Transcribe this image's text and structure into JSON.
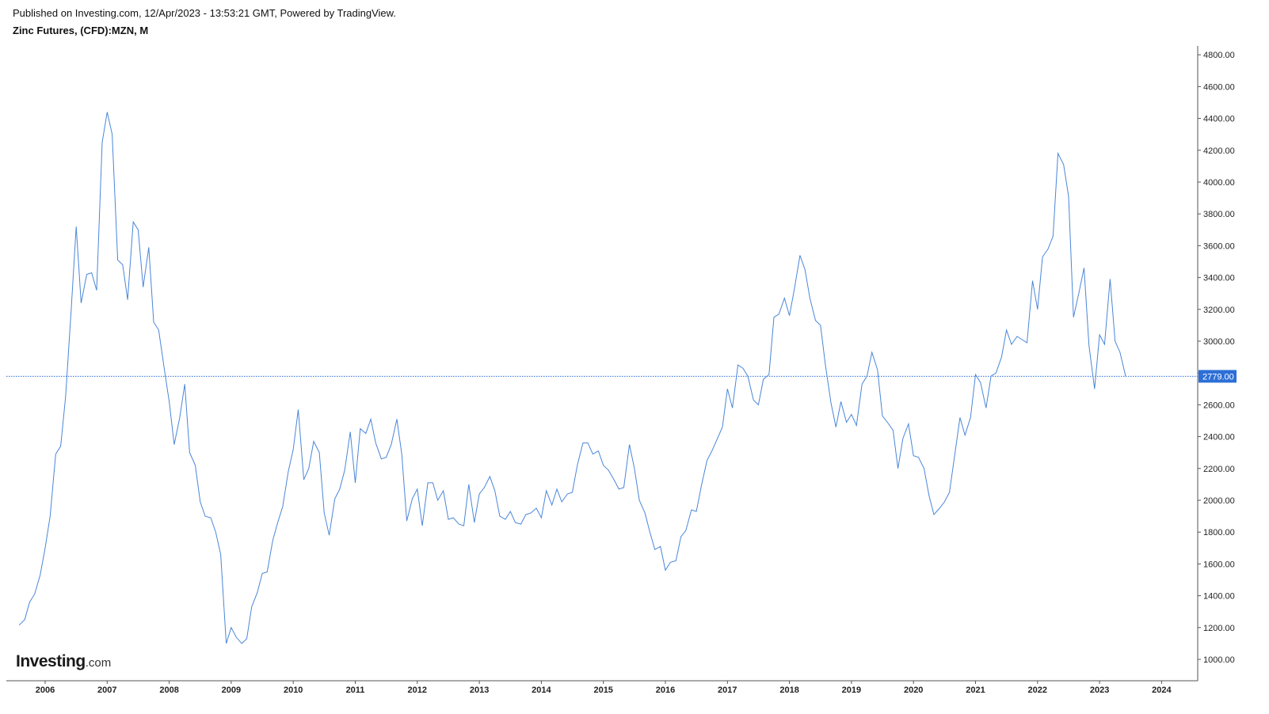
{
  "header": {
    "published": "Published on Investing.com, 12/Apr/2023 - 13:53:21 GMT, Powered by TradingView.",
    "symbol": "Zinc Futures, (CFD):MZN, M"
  },
  "logo": {
    "brand": "Investing",
    "tld": ".com"
  },
  "colors": {
    "line": "#4a86d8",
    "price_label_bg": "#2c6fd6",
    "axis": "#555555"
  },
  "chart_data": {
    "type": "line",
    "title": "Zinc Futures, (CFD):MZN, M",
    "xlabel": "",
    "ylabel": "",
    "x_range": [
      2005.5,
      2024.5
    ],
    "ylim": [
      870,
      4870
    ],
    "grid": false,
    "y_ticks": [
      1000,
      1200,
      1400,
      1600,
      1800,
      2000,
      2200,
      2400,
      2600,
      2800,
      3000,
      3200,
      3400,
      3600,
      3800,
      4000,
      4200,
      4400,
      4600,
      4800
    ],
    "y_tick_labels": [
      "1000.00",
      "1200.00",
      "1400.00",
      "1600.00",
      "1800.00",
      "2000.00",
      "2200.00",
      "2400.00",
      "2600.00",
      "2800.00",
      "3000.00",
      "3200.00",
      "3400.00",
      "3600.00",
      "3800.00",
      "4000.00",
      "4200.00",
      "4400.00",
      "4600.00",
      "4800.00"
    ],
    "x_ticks": [
      2006,
      2007,
      2008,
      2009,
      2010,
      2011,
      2012,
      2013,
      2014,
      2015,
      2016,
      2017,
      2018,
      2019,
      2020,
      2021,
      2022,
      2023,
      2024
    ],
    "x_tick_labels": [
      "2006",
      "2007",
      "2008",
      "2009",
      "2010",
      "2011",
      "2012",
      "2013",
      "2014",
      "2015",
      "2016",
      "2017",
      "2018",
      "2019",
      "2020",
      "2021",
      "2022",
      "2023",
      "2024"
    ],
    "last_price": 2779,
    "last_price_label": "2779.00",
    "series": [
      {
        "points": [
          [
            2005.58,
            1215
          ],
          [
            2005.67,
            1250
          ],
          [
            2005.75,
            1360
          ],
          [
            2005.83,
            1410
          ],
          [
            2005.92,
            1530
          ],
          [
            2006.0,
            1700
          ],
          [
            2006.08,
            1900
          ],
          [
            2006.17,
            2290
          ],
          [
            2006.25,
            2340
          ],
          [
            2006.33,
            2650
          ],
          [
            2006.42,
            3200
          ],
          [
            2006.5,
            3720
          ],
          [
            2006.58,
            3240
          ],
          [
            2006.67,
            3420
          ],
          [
            2006.75,
            3430
          ],
          [
            2006.83,
            3320
          ],
          [
            2006.92,
            4250
          ],
          [
            2007.0,
            4440
          ],
          [
            2007.08,
            4300
          ],
          [
            2007.17,
            3510
          ],
          [
            2007.25,
            3480
          ],
          [
            2007.33,
            3260
          ],
          [
            2007.42,
            3750
          ],
          [
            2007.5,
            3700
          ],
          [
            2007.58,
            3340
          ],
          [
            2007.67,
            3590
          ],
          [
            2007.75,
            3120
          ],
          [
            2007.83,
            3070
          ],
          [
            2007.92,
            2830
          ],
          [
            2008.0,
            2620
          ],
          [
            2008.08,
            2350
          ],
          [
            2008.17,
            2520
          ],
          [
            2008.25,
            2730
          ],
          [
            2008.33,
            2300
          ],
          [
            2008.42,
            2220
          ],
          [
            2008.5,
            1990
          ],
          [
            2008.58,
            1900
          ],
          [
            2008.67,
            1890
          ],
          [
            2008.75,
            1800
          ],
          [
            2008.83,
            1660
          ],
          [
            2008.92,
            1100
          ],
          [
            2009.0,
            1200
          ],
          [
            2009.08,
            1140
          ],
          [
            2009.17,
            1100
          ],
          [
            2009.25,
            1130
          ],
          [
            2009.33,
            1330
          ],
          [
            2009.42,
            1420
          ],
          [
            2009.5,
            1540
          ],
          [
            2009.58,
            1550
          ],
          [
            2009.67,
            1750
          ],
          [
            2009.75,
            1860
          ],
          [
            2009.83,
            1960
          ],
          [
            2009.92,
            2180
          ],
          [
            2010.0,
            2320
          ],
          [
            2010.08,
            2570
          ],
          [
            2010.17,
            2130
          ],
          [
            2010.25,
            2200
          ],
          [
            2010.33,
            2370
          ],
          [
            2010.42,
            2300
          ],
          [
            2010.5,
            1920
          ],
          [
            2010.58,
            1780
          ],
          [
            2010.67,
            2010
          ],
          [
            2010.75,
            2070
          ],
          [
            2010.83,
            2190
          ],
          [
            2010.92,
            2430
          ],
          [
            2011.0,
            2110
          ],
          [
            2011.08,
            2450
          ],
          [
            2011.17,
            2420
          ],
          [
            2011.25,
            2510
          ],
          [
            2011.33,
            2360
          ],
          [
            2011.42,
            2260
          ],
          [
            2011.5,
            2270
          ],
          [
            2011.58,
            2350
          ],
          [
            2011.67,
            2510
          ],
          [
            2011.75,
            2290
          ],
          [
            2011.83,
            1870
          ],
          [
            2011.92,
            2010
          ],
          [
            2012.0,
            2070
          ],
          [
            2012.08,
            1840
          ],
          [
            2012.17,
            2110
          ],
          [
            2012.25,
            2110
          ],
          [
            2012.33,
            2000
          ],
          [
            2012.42,
            2060
          ],
          [
            2012.5,
            1880
          ],
          [
            2012.58,
            1890
          ],
          [
            2012.67,
            1850
          ],
          [
            2012.75,
            1840
          ],
          [
            2012.83,
            2100
          ],
          [
            2012.92,
            1860
          ],
          [
            2013.0,
            2040
          ],
          [
            2013.08,
            2080
          ],
          [
            2013.17,
            2150
          ],
          [
            2013.25,
            2060
          ],
          [
            2013.33,
            1900
          ],
          [
            2013.42,
            1880
          ],
          [
            2013.5,
            1930
          ],
          [
            2013.58,
            1860
          ],
          [
            2013.67,
            1850
          ],
          [
            2013.75,
            1910
          ],
          [
            2013.83,
            1920
          ],
          [
            2013.92,
            1950
          ],
          [
            2014.0,
            1890
          ],
          [
            2014.08,
            2060
          ],
          [
            2014.17,
            1970
          ],
          [
            2014.25,
            2070
          ],
          [
            2014.33,
            1990
          ],
          [
            2014.42,
            2040
          ],
          [
            2014.5,
            2050
          ],
          [
            2014.58,
            2220
          ],
          [
            2014.67,
            2360
          ],
          [
            2014.75,
            2360
          ],
          [
            2014.83,
            2290
          ],
          [
            2014.92,
            2310
          ],
          [
            2015.0,
            2220
          ],
          [
            2015.08,
            2190
          ],
          [
            2015.17,
            2130
          ],
          [
            2015.25,
            2070
          ],
          [
            2015.33,
            2080
          ],
          [
            2015.42,
            2350
          ],
          [
            2015.5,
            2200
          ],
          [
            2015.58,
            2000
          ],
          [
            2015.67,
            1920
          ],
          [
            2015.75,
            1800
          ],
          [
            2015.83,
            1690
          ],
          [
            2015.92,
            1710
          ],
          [
            2016.0,
            1560
          ],
          [
            2016.08,
            1610
          ],
          [
            2016.17,
            1620
          ],
          [
            2016.25,
            1770
          ],
          [
            2016.33,
            1810
          ],
          [
            2016.42,
            1940
          ],
          [
            2016.5,
            1930
          ],
          [
            2016.58,
            2090
          ],
          [
            2016.67,
            2250
          ],
          [
            2016.75,
            2310
          ],
          [
            2016.83,
            2380
          ],
          [
            2016.92,
            2460
          ],
          [
            2017.0,
            2700
          ],
          [
            2017.08,
            2580
          ],
          [
            2017.17,
            2850
          ],
          [
            2017.25,
            2830
          ],
          [
            2017.33,
            2780
          ],
          [
            2017.42,
            2630
          ],
          [
            2017.5,
            2600
          ],
          [
            2017.58,
            2760
          ],
          [
            2017.67,
            2790
          ],
          [
            2017.75,
            3150
          ],
          [
            2017.83,
            3170
          ],
          [
            2017.92,
            3270
          ],
          [
            2018.0,
            3160
          ],
          [
            2018.08,
            3330
          ],
          [
            2018.17,
            3540
          ],
          [
            2018.25,
            3450
          ],
          [
            2018.33,
            3270
          ],
          [
            2018.42,
            3130
          ],
          [
            2018.5,
            3100
          ],
          [
            2018.58,
            2850
          ],
          [
            2018.67,
            2610
          ],
          [
            2018.75,
            2460
          ],
          [
            2018.83,
            2620
          ],
          [
            2018.92,
            2490
          ],
          [
            2019.0,
            2540
          ],
          [
            2019.08,
            2470
          ],
          [
            2019.17,
            2730
          ],
          [
            2019.25,
            2780
          ],
          [
            2019.33,
            2930
          ],
          [
            2019.42,
            2820
          ],
          [
            2019.5,
            2530
          ],
          [
            2019.58,
            2490
          ],
          [
            2019.67,
            2440
          ],
          [
            2019.75,
            2200
          ],
          [
            2019.83,
            2390
          ],
          [
            2019.92,
            2480
          ],
          [
            2020.0,
            2280
          ],
          [
            2020.08,
            2270
          ],
          [
            2020.17,
            2200
          ],
          [
            2020.25,
            2030
          ],
          [
            2020.33,
            1910
          ],
          [
            2020.42,
            1950
          ],
          [
            2020.5,
            1990
          ],
          [
            2020.58,
            2050
          ],
          [
            2020.67,
            2300
          ],
          [
            2020.75,
            2520
          ],
          [
            2020.83,
            2410
          ],
          [
            2020.92,
            2520
          ],
          [
            2021.0,
            2790
          ],
          [
            2021.08,
            2740
          ],
          [
            2021.17,
            2580
          ],
          [
            2021.25,
            2780
          ],
          [
            2021.33,
            2800
          ],
          [
            2021.42,
            2900
          ],
          [
            2021.5,
            3070
          ],
          [
            2021.58,
            2980
          ],
          [
            2021.67,
            3030
          ],
          [
            2021.75,
            3010
          ],
          [
            2021.83,
            2990
          ],
          [
            2021.92,
            3380
          ],
          [
            2022.0,
            3200
          ],
          [
            2022.08,
            3530
          ],
          [
            2022.17,
            3580
          ],
          [
            2022.25,
            3660
          ],
          [
            2022.33,
            4180
          ],
          [
            2022.42,
            4110
          ],
          [
            2022.5,
            3910
          ],
          [
            2022.58,
            3150
          ],
          [
            2022.67,
            3310
          ],
          [
            2022.75,
            3460
          ],
          [
            2022.83,
            2970
          ],
          [
            2022.92,
            2700
          ],
          [
            2023.0,
            3040
          ],
          [
            2023.08,
            2980
          ],
          [
            2023.17,
            3390
          ],
          [
            2023.25,
            3000
          ],
          [
            2023.33,
            2930
          ],
          [
            2023.42,
            2779
          ]
        ]
      }
    ]
  }
}
